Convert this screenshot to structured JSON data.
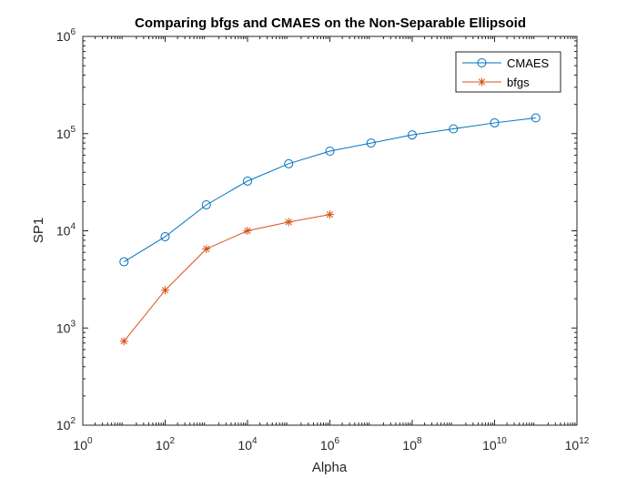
{
  "chart_data": {
    "type": "line",
    "title": "Comparing bfgs and CMAES on the Non-Separable Ellipsoid",
    "xlabel": "Alpha",
    "ylabel": "SP1",
    "xscale": "log",
    "yscale": "log",
    "xlim": [
      1,
      1000000000000
    ],
    "ylim": [
      100,
      1000000
    ],
    "x_ticks": [
      {
        "base": "10",
        "exp": "0"
      },
      {
        "base": "10",
        "exp": "2"
      },
      {
        "base": "10",
        "exp": "4"
      },
      {
        "base": "10",
        "exp": "6"
      },
      {
        "base": "10",
        "exp": "8"
      },
      {
        "base": "10",
        "exp": "10"
      },
      {
        "base": "10",
        "exp": "12"
      }
    ],
    "y_ticks": [
      {
        "base": "10",
        "exp": "2"
      },
      {
        "base": "10",
        "exp": "3"
      },
      {
        "base": "10",
        "exp": "4"
      },
      {
        "base": "10",
        "exp": "5"
      },
      {
        "base": "10",
        "exp": "6"
      }
    ],
    "grid": false,
    "legend_position": "top-right",
    "series": [
      {
        "name": "CMAES",
        "color": "#0072BD",
        "marker": "circle",
        "x": [
          10,
          100,
          1000,
          10000,
          100000,
          1000000,
          10000000,
          100000000,
          1000000000,
          10000000000,
          100000000000
        ],
        "y": [
          4800,
          8700,
          18500,
          32500,
          49000,
          66000,
          80000,
          97000,
          112000,
          129000,
          145000
        ]
      },
      {
        "name": "bfgs",
        "color": "#D95319",
        "marker": "asterisk",
        "x": [
          10,
          100,
          1000,
          10000,
          100000,
          1000000
        ],
        "y": [
          730,
          2450,
          6500,
          10000,
          12300,
          14700
        ]
      }
    ]
  }
}
